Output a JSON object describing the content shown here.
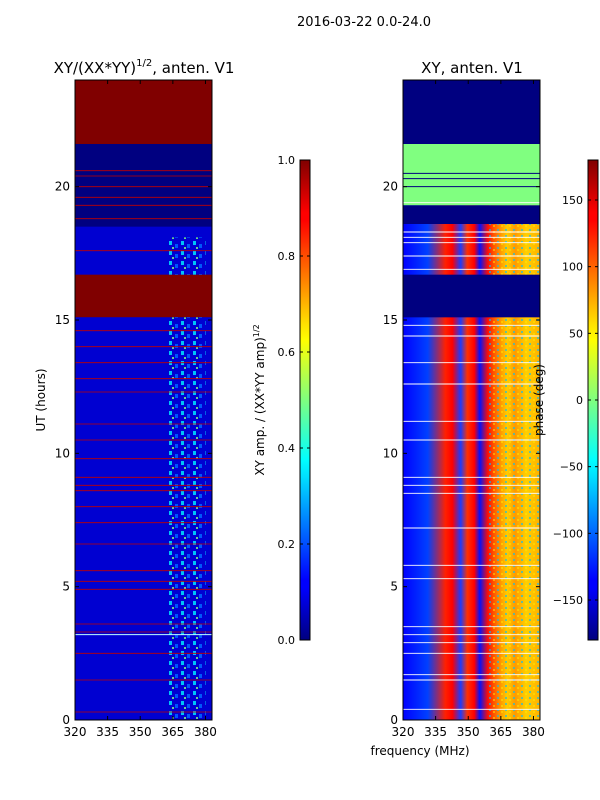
{
  "suptitle": "2016-03-22 0.0-24.0",
  "chart_data": [
    {
      "type": "heatmap",
      "title_main": "XY/(XX*YY)",
      "title_sup": "1/2",
      "title_tail": ", anten. V1",
      "ylabel": "UT (hours)",
      "x_ticks": [
        320,
        335,
        350,
        365,
        380
      ],
      "y_ticks": [
        0,
        5,
        10,
        15,
        20
      ],
      "xlim": [
        320,
        383
      ],
      "ylim": [
        0,
        24
      ],
      "colorbar": {
        "label_main": "XY amp. / (XX*YY amp)",
        "label_sup": "1/2",
        "range": [
          0.0,
          1.0
        ],
        "ticks": [
          "0.0",
          "0.2",
          "0.4",
          "0.6",
          "0.8",
          "1.0"
        ],
        "tick_values": [
          0.0,
          0.2,
          0.4,
          0.6,
          0.8,
          1.0
        ]
      },
      "row_bands": [
        {
          "from": 21.6,
          "to": 24.0,
          "value": 1.0
        },
        {
          "from": 18.5,
          "to": 21.6,
          "value": 0.0
        },
        {
          "from": 16.7,
          "to": 18.1,
          "value": 0.08
        },
        {
          "from": 15.1,
          "to": 16.7,
          "value": 1.0
        },
        {
          "from": 0.0,
          "to": 15.1,
          "value": 0.08
        }
      ]
    },
    {
      "type": "heatmap",
      "title": "XY, anten. V1",
      "xlabel": "frequency (MHz)",
      "x_ticks": [
        320,
        335,
        350,
        365,
        380
      ],
      "y_ticks": [
        0,
        5,
        10,
        15,
        20
      ],
      "xlim": [
        320,
        383
      ],
      "ylim": [
        0,
        24
      ],
      "colorbar": {
        "label": "phase (deg)",
        "range": [
          -180,
          180
        ],
        "ticks": [
          "−150",
          "−100",
          "−50",
          "0",
          "50",
          "100",
          "150"
        ],
        "tick_values": [
          -150,
          -100,
          -50,
          0,
          50,
          100,
          150
        ]
      },
      "row_bands": [
        {
          "from": 21.6,
          "to": 24.0,
          "value": -180
        },
        {
          "from": 19.3,
          "to": 21.6,
          "value": 0
        },
        {
          "from": 18.6,
          "to": 19.3,
          "value": -180
        },
        {
          "from": 15.1,
          "to": 16.7,
          "value": -180
        }
      ]
    }
  ],
  "colors": {
    "deep_red": "#800000",
    "navy": "#00007f",
    "green": "#7fff7f"
  }
}
